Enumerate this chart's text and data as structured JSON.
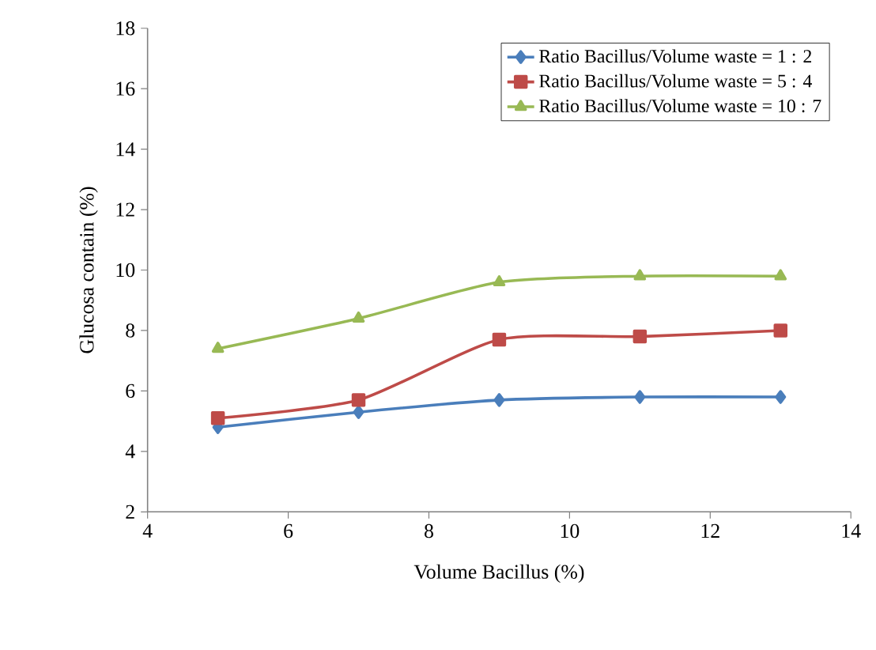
{
  "chart_data": {
    "type": "line",
    "xlabel": "Volume Bacillus (%)",
    "ylabel": "Glucosa contain (%)",
    "x": [
      5,
      7,
      9,
      11,
      13
    ],
    "series": [
      {
        "name": "Ratio Bacillus/Volume waste = 1 : 2",
        "color": "#4a7ebb",
        "marker": "diamond",
        "values": [
          4.8,
          5.3,
          5.7,
          5.8,
          5.8
        ]
      },
      {
        "name": "Ratio Bacillus/Volume waste = 5 : 4",
        "color": "#be4b48",
        "marker": "square",
        "values": [
          5.1,
          5.7,
          7.7,
          7.8,
          8.0
        ]
      },
      {
        "name": "Ratio Bacillus/Volume waste = 10 : 7",
        "color": "#98b954",
        "marker": "triangle",
        "values": [
          7.4,
          8.4,
          9.6,
          9.8,
          9.8
        ]
      }
    ],
    "xlim": [
      4,
      14
    ],
    "xticks": [
      4,
      6,
      8,
      10,
      12,
      14
    ],
    "ylim": [
      2,
      18
    ],
    "yticks": [
      2,
      4,
      6,
      8,
      10,
      12,
      14,
      16,
      18
    ],
    "grid": false,
    "legend": "top right",
    "line_style": "solid"
  }
}
